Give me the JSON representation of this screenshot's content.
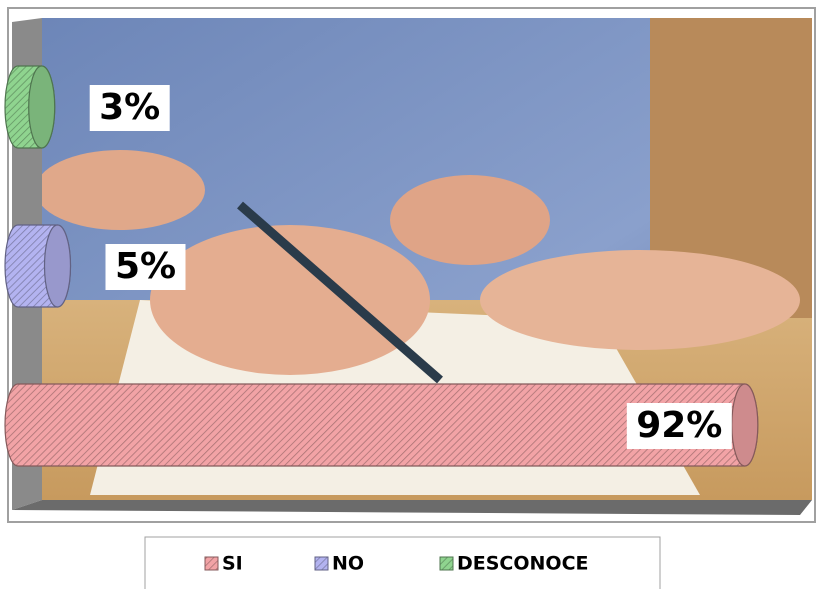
{
  "chart_data": {
    "type": "bar",
    "orientation": "horizontal",
    "series": [
      {
        "name": "SI",
        "color": "#f2a3a6",
        "values": [
          92
        ],
        "value_labels": [
          "92%"
        ]
      },
      {
        "name": "NO",
        "color": "#b3b3f0",
        "values": [
          5
        ],
        "value_labels": [
          "5%"
        ]
      },
      {
        "name": "DESCONOCE",
        "color": "#8fd48f",
        "values": [
          3
        ],
        "value_labels": [
          "3%"
        ]
      }
    ],
    "xlim": [
      0,
      100
    ]
  }
}
